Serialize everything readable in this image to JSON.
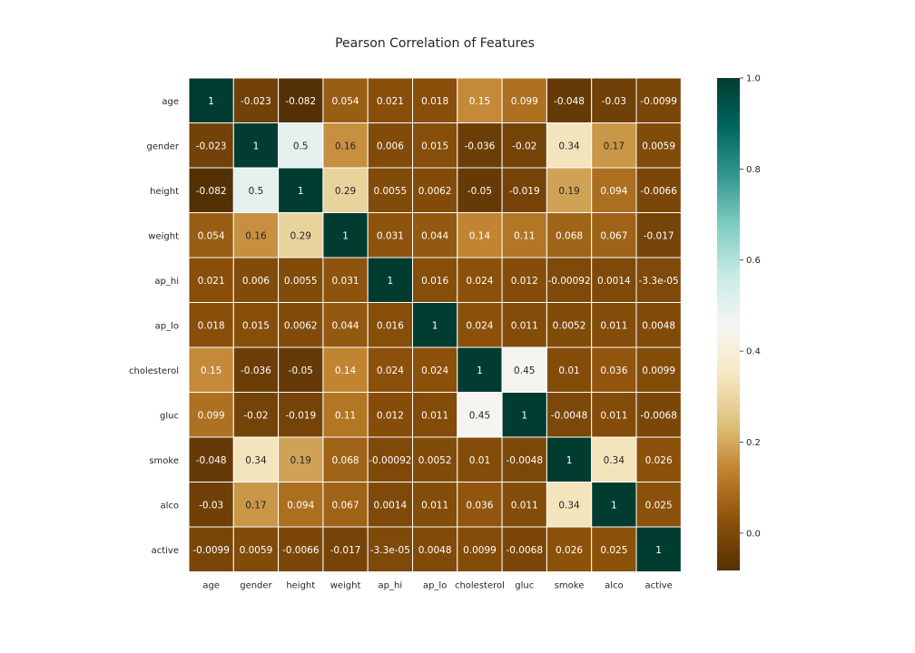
{
  "chart_data": {
    "type": "heatmap",
    "title": "Pearson Correlation of Features",
    "labels": [
      "age",
      "gender",
      "height",
      "weight",
      "ap_hi",
      "ap_lo",
      "cholesterol",
      "gluc",
      "smoke",
      "alco",
      "active"
    ],
    "matrix": [
      [
        "1",
        "-0.023",
        "-0.082",
        "0.054",
        "0.021",
        "0.018",
        "0.15",
        "0.099",
        "-0.048",
        "-0.03",
        "-0.0099"
      ],
      [
        "-0.023",
        "1",
        "0.5",
        "0.16",
        "0.006",
        "0.015",
        "-0.036",
        "-0.02",
        "0.34",
        "0.17",
        "0.0059"
      ],
      [
        "-0.082",
        "0.5",
        "1",
        "0.29",
        "0.0055",
        "0.0062",
        "-0.05",
        "-0.019",
        "0.19",
        "0.094",
        "-0.0066"
      ],
      [
        "0.054",
        "0.16",
        "0.29",
        "1",
        "0.031",
        "0.044",
        "0.14",
        "0.11",
        "0.068",
        "0.067",
        "-0.017"
      ],
      [
        "0.021",
        "0.006",
        "0.0055",
        "0.031",
        "1",
        "0.016",
        "0.024",
        "0.012",
        "-0.00092",
        "0.0014",
        "-3.3e-05"
      ],
      [
        "0.018",
        "0.015",
        "0.0062",
        "0.044",
        "0.016",
        "1",
        "0.024",
        "0.011",
        "0.0052",
        "0.011",
        "0.0048"
      ],
      [
        "0.15",
        "-0.036",
        "-0.05",
        "0.14",
        "0.024",
        "0.024",
        "1",
        "0.45",
        "0.01",
        "0.036",
        "0.0099"
      ],
      [
        "0.099",
        "-0.02",
        "-0.019",
        "0.11",
        "0.012",
        "0.011",
        "0.45",
        "1",
        "-0.0048",
        "0.011",
        "-0.0068"
      ],
      [
        "-0.048",
        "0.34",
        "0.19",
        "0.068",
        "-0.00092",
        "0.0052",
        "0.01",
        "-0.0048",
        "1",
        "0.34",
        "0.026"
      ],
      [
        "-0.03",
        "0.17",
        "0.094",
        "0.067",
        "0.0014",
        "0.011",
        "0.036",
        "0.011",
        "0.34",
        "1",
        "0.025"
      ],
      [
        "-0.0099",
        "0.0059",
        "-0.0066",
        "-0.017",
        "-3.3e-05",
        "0.0048",
        "0.0099",
        "-0.0068",
        "0.026",
        "0.025",
        "1"
      ]
    ],
    "colormap": "BrBG",
    "vmin": -0.082,
    "vmax": 1.0,
    "colorbar_ticks": [
      "0.0",
      "0.2",
      "0.4",
      "0.6",
      "0.8",
      "1.0"
    ],
    "colorbar_tick_values": [
      0.0,
      0.2,
      0.4,
      0.6,
      0.8,
      1.0
    ],
    "grid": true,
    "grid_color": "#ffffff",
    "annotated": true
  }
}
